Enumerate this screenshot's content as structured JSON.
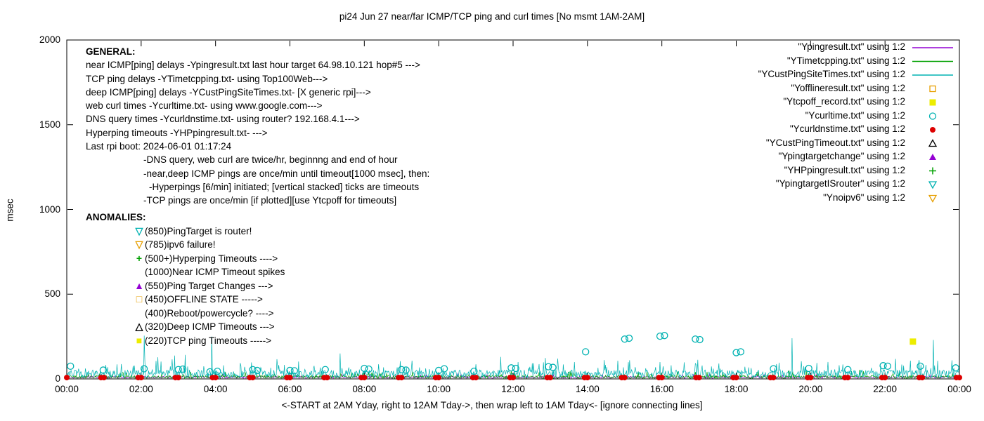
{
  "title": "pi24 Jun 27  near/far ICMP/TCP ping and curl times [No msmt 1AM-2AM]",
  "general": {
    "lines": [
      "GENERAL:",
      "near ICMP[ping] delays -Ypingresult.txt last hour target 64.98.10.121 hop#5 --->",
      "TCP ping delays -YTimetcpping.txt- using Top100Web--->",
      "deep ICMP[ping] delays -YCustPingSiteTimes.txt- [X generic rpi]--->",
      "web curl times -Ycurltime.txt- using www.google.com--->",
      "DNS query times -Ycurldnstime.txt- using router? 192.168.4.1--->",
      "Hyperping timeouts -YHPpingresult.txt- --->",
      "Last rpi boot: 2024-06-01 01:17:24",
      "-DNS query, web curl are twice/hr, beginnng and end of hour",
      "-near,deep ICMP pings are once/min until timeout[1000 msec], then:",
      "-Hyperpings [6/min] initiated; [vertical stacked] ticks are timeouts",
      "-TCP pings are once/min [if plotted][use Ytcpoff for timeouts]"
    ]
  },
  "anomalies": {
    "header": "ANOMALIES:",
    "items": [
      {
        "icon": "triangle-down-open",
        "color": "#00b2b2",
        "text": "(850)PingTarget is router!"
      },
      {
        "icon": "triangle-down-open",
        "color": "#e69f00",
        "text": "(785)ipv6 failure!"
      },
      {
        "icon": "plus",
        "color": "#00a000",
        "text": "(500+)Hyperping Timeouts ---->"
      },
      {
        "icon": "",
        "color": "",
        "text": "(1000)Near ICMP Timeout spikes"
      },
      {
        "icon": "triangle-filled",
        "color": "#9400d3",
        "text": "(550)Ping Target Changes --->"
      },
      {
        "icon": "square-open",
        "color": "#e69f00",
        "text": "(450)OFFLINE STATE ----->"
      },
      {
        "icon": "",
        "color": "",
        "text": "(400)Reboot/powercycle? ---->"
      },
      {
        "icon": "triangle-open",
        "color": "#000000",
        "text": "(320)Deep ICMP Timeouts --->"
      },
      {
        "icon": "square-filled",
        "color": "#eded00",
        "text": "(220)TCP ping Timeouts ----->"
      }
    ]
  },
  "chart_data": {
    "type": "line",
    "title": "pi24 Jun 27  near/far ICMP/TCP ping and curl times [No msmt 1AM-2AM]",
    "xlabel": "<-START at 2AM Yday, right to 12AM Tday->, then wrap left to 1AM Tday<- [ignore connecting lines]",
    "ylabel": "msec",
    "xlim": [
      0,
      24
    ],
    "ylim": [
      0,
      2000
    ],
    "grid": false,
    "legend_position": "top-right",
    "x_tick_labels": [
      "00:00",
      "02:00",
      "04:00",
      "06:00",
      "08:00",
      "10:00",
      "12:00",
      "14:00",
      "16:00",
      "18:00",
      "20:00",
      "22:00",
      "00:00"
    ],
    "y_tick_values": [
      0,
      500,
      1000,
      1500,
      2000
    ],
    "series": [
      {
        "name": "\"Ypingresult.txt\" using 1:2",
        "style": "line",
        "color": "#9400d3",
        "base": 4,
        "jitter": 12,
        "burst_prob": 0.03,
        "burst": 18,
        "spikes": []
      },
      {
        "name": "\"YTimetcpping.txt\" using 1:2",
        "style": "line",
        "color": "#00a000",
        "base": 3,
        "jitter": 18,
        "burst_prob": 0.06,
        "burst": 35,
        "spikes": []
      },
      {
        "name": "\"YCustPingSiteTimes.txt\" using 1:2",
        "style": "line",
        "color": "#00b2b2",
        "base": 8,
        "jitter": 45,
        "burst_prob": 0.1,
        "burst": 70,
        "burst2_prob": 0.006,
        "burst2": 100,
        "spikes": [
          [
            2.08,
            255
          ],
          [
            3.9,
            250
          ],
          [
            7.35,
            150
          ],
          [
            11.66,
            130
          ],
          [
            13.2,
            120
          ],
          [
            19.5,
            240
          ],
          [
            23.3,
            230
          ]
        ]
      },
      {
        "name": "\"Yofflineresult.txt\" using 1:2",
        "style": "points",
        "marker": "square-open",
        "color": "#e69f00",
        "points": []
      },
      {
        "name": "\"Ytcpoff_record.txt\" using 1:2",
        "style": "points",
        "marker": "square-filled",
        "color": "#eded00",
        "points": [
          [
            22.75,
            220
          ]
        ]
      },
      {
        "name": "\"Ycurltime.txt\" using 1:2",
        "style": "points",
        "marker": "circle-open",
        "color": "#00b2b2",
        "points": [
          [
            0.1,
            75
          ],
          [
            0.98,
            52
          ],
          [
            2.08,
            60
          ],
          [
            3.0,
            55
          ],
          [
            3.12,
            58
          ],
          [
            3.85,
            42
          ],
          [
            4.05,
            45
          ],
          [
            5.0,
            55
          ],
          [
            5.12,
            50
          ],
          [
            6.0,
            50
          ],
          [
            6.12,
            48
          ],
          [
            6.95,
            55
          ],
          [
            8.0,
            62
          ],
          [
            8.12,
            58
          ],
          [
            9.0,
            55
          ],
          [
            9.12,
            52
          ],
          [
            10.0,
            50
          ],
          [
            10.15,
            60
          ],
          [
            10.95,
            45
          ],
          [
            11.95,
            65
          ],
          [
            12.07,
            62
          ],
          [
            12.95,
            72
          ],
          [
            13.07,
            68
          ],
          [
            13.95,
            160
          ],
          [
            15.0,
            235
          ],
          [
            15.12,
            240
          ],
          [
            15.95,
            252
          ],
          [
            16.07,
            256
          ],
          [
            16.9,
            235
          ],
          [
            17.02,
            232
          ],
          [
            18.0,
            155
          ],
          [
            18.12,
            160
          ],
          [
            19.0,
            60
          ],
          [
            19.95,
            62
          ],
          [
            21.0,
            55
          ],
          [
            21.95,
            78
          ],
          [
            22.07,
            75
          ],
          [
            22.95,
            75
          ],
          [
            23.9,
            65
          ]
        ]
      },
      {
        "name": "\"Ycurldnstime.txt\" using 1:2",
        "style": "points",
        "marker": "circle-filled",
        "color": "#dd0000",
        "points": [
          [
            0,
            8
          ],
          [
            0.92,
            8
          ],
          [
            1,
            8
          ],
          [
            1.92,
            8
          ],
          [
            2,
            8
          ],
          [
            2.92,
            8
          ],
          [
            3,
            8
          ],
          [
            3.92,
            8
          ],
          [
            4,
            8
          ],
          [
            4.92,
            8
          ],
          [
            5,
            8
          ],
          [
            5.92,
            8
          ],
          [
            6,
            8
          ],
          [
            6.92,
            8
          ],
          [
            7,
            8
          ],
          [
            7.92,
            8
          ],
          [
            8,
            8
          ],
          [
            8.92,
            8
          ],
          [
            9,
            8
          ],
          [
            9.92,
            8
          ],
          [
            10,
            8
          ],
          [
            10.92,
            8
          ],
          [
            11,
            8
          ],
          [
            11.92,
            8
          ],
          [
            12,
            8
          ],
          [
            12.92,
            8
          ],
          [
            13,
            8
          ],
          [
            13.92,
            8
          ],
          [
            14,
            8
          ],
          [
            14.92,
            8
          ],
          [
            15,
            8
          ],
          [
            15.92,
            8
          ],
          [
            16,
            8
          ],
          [
            16.92,
            8
          ],
          [
            17,
            8
          ],
          [
            17.92,
            8
          ],
          [
            18,
            8
          ],
          [
            18.92,
            8
          ],
          [
            19,
            8
          ],
          [
            19.92,
            8
          ],
          [
            20,
            8
          ],
          [
            20.92,
            8
          ],
          [
            21,
            8
          ],
          [
            21.92,
            8
          ],
          [
            22,
            8
          ],
          [
            22.92,
            8
          ],
          [
            23,
            8
          ],
          [
            23.92,
            8
          ],
          [
            24,
            8
          ]
        ]
      },
      {
        "name": "\"YCustPingTimeout.txt\" using 1:2",
        "style": "points",
        "marker": "triangle-open",
        "color": "#000000",
        "points": []
      },
      {
        "name": "\"Ypingtargetchange\" using 1:2",
        "style": "points",
        "marker": "triangle-filled",
        "color": "#9400d3",
        "points": []
      },
      {
        "name": "\"YHPpingresult.txt\" using 1:2",
        "style": "points",
        "marker": "plus",
        "color": "#00a000",
        "points": []
      },
      {
        "name": "\"YpingtargetISrouter\" using 1:2",
        "style": "points",
        "marker": "triangle-down-open",
        "color": "#00b2b2",
        "points": []
      },
      {
        "name": "\"Ynoipv6\" using 1:2",
        "style": "points",
        "marker": "triangle-down-open",
        "color": "#e69f00",
        "points": []
      }
    ]
  }
}
